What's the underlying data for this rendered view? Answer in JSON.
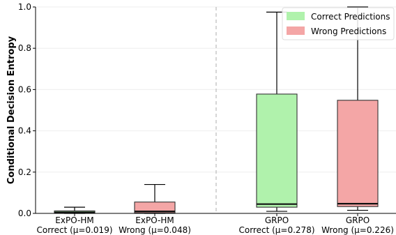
{
  "chart_data": {
    "type": "box",
    "ylabel": "Conditional Decision Entropy",
    "ylim": [
      0,
      1.0
    ],
    "yticks": [
      "0.0",
      "0.2",
      "0.4",
      "0.6",
      "0.8",
      "1.0"
    ],
    "grid": true,
    "legend_position": "top-right",
    "legend": [
      {
        "label": "Correct Predictions",
        "color": "#b0f2ac"
      },
      {
        "label": "Wrong Predictions",
        "color": "#f4a6a6"
      }
    ],
    "categories": [
      {
        "line1": "ExPO-HM",
        "line2": "Correct (μ=0.019)"
      },
      {
        "line1": "ExPO-HM",
        "line2": "Wrong (μ=0.048)"
      },
      {
        "line1": "GRPO",
        "line2": "Correct (μ=0.278)"
      },
      {
        "line1": "GRPO",
        "line2": "Wrong (μ=0.226)"
      }
    ],
    "boxes": [
      {
        "group": "ExPO-HM",
        "kind": "correct",
        "whisker_low": 0.0,
        "q1": 0.002,
        "median": 0.005,
        "q3": 0.012,
        "whisker_high": 0.03,
        "color": "#b0f2ac"
      },
      {
        "group": "ExPO-HM",
        "kind": "wrong",
        "whisker_low": 0.0,
        "q1": 0.003,
        "median": 0.01,
        "q3": 0.055,
        "whisker_high": 0.14,
        "color": "#f4a6a6"
      },
      {
        "group": "GRPO",
        "kind": "correct",
        "whisker_low": 0.01,
        "q1": 0.03,
        "median": 0.045,
        "q3": 0.578,
        "whisker_high": 0.975,
        "color": "#b0f2ac"
      },
      {
        "group": "GRPO",
        "kind": "wrong",
        "whisker_low": 0.015,
        "q1": 0.033,
        "median": 0.047,
        "q3": 0.548,
        "whisker_high": 1.0,
        "color": "#f4a6a6"
      }
    ]
  }
}
